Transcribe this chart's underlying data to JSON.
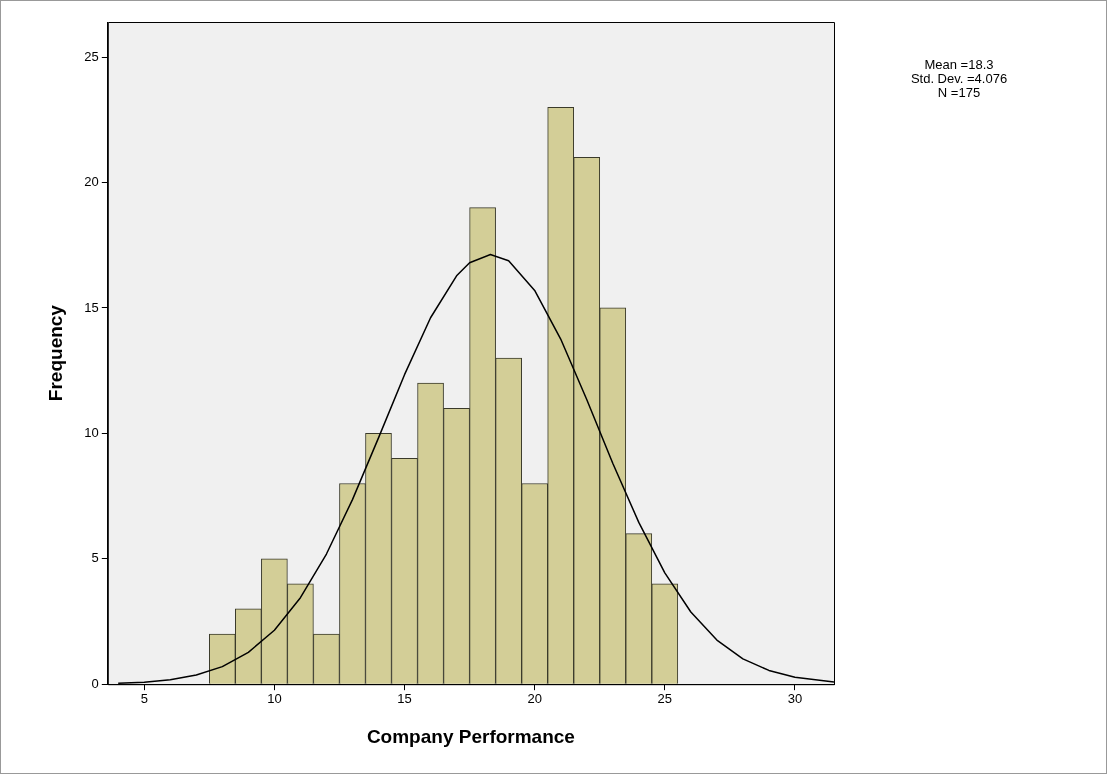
{
  "chart_data": {
    "type": "histogram",
    "xlabel": "Company Performance",
    "ylabel": "Frequency",
    "bins": [
      7.5,
      8.5,
      9.5,
      10.5,
      11.5,
      12.5,
      13.5,
      14.5,
      15.5,
      16.5,
      17.5,
      18.5,
      19.5,
      20.5,
      21.5,
      22.5,
      23.5,
      24.5,
      25.5
    ],
    "values": [
      2,
      3,
      5,
      4,
      2,
      8,
      10,
      9,
      12,
      11,
      19,
      13,
      8,
      23,
      21,
      15,
      6,
      4
    ],
    "color": "#d3ce97",
    "series": [
      {
        "type": "line",
        "color": "#000000",
        "x": [
          4,
          5,
          6,
          7,
          8,
          9,
          10,
          11,
          12,
          13,
          14,
          15,
          16,
          17,
          17.5,
          18.3,
          19,
          20,
          21,
          22,
          23,
          24,
          25,
          26,
          27,
          28,
          29,
          30,
          31.5
        ],
        "values": [
          0.04,
          0.08,
          0.18,
          0.37,
          0.7,
          1.27,
          2.15,
          3.45,
          5.19,
          7.36,
          9.82,
          12.34,
          14.61,
          16.28,
          16.8,
          17.13,
          16.88,
          15.7,
          13.76,
          11.35,
          8.81,
          6.45,
          4.44,
          2.88,
          1.76,
          1.01,
          0.55,
          0.28,
          0.09
        ]
      }
    ],
    "xlim": [
      3.6,
      31.5
    ],
    "xticks": [
      5,
      10,
      15,
      20,
      25,
      30
    ],
    "ylim": [
      0,
      26.4
    ],
    "yticks": [
      0,
      5,
      10,
      15,
      20,
      25
    ],
    "grid": false,
    "legend": false,
    "marker": "none",
    "annotations": [
      "Mean =18.3",
      "Std. Dev. =4.076",
      "N =175"
    ]
  }
}
